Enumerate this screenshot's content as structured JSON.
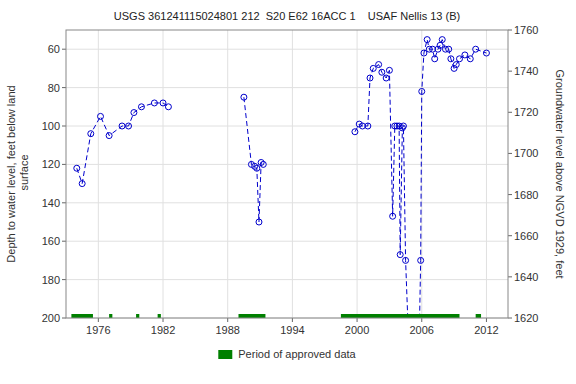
{
  "chart_data": {
    "type": "line",
    "title": "USGS 361241115024801 212  S20 E62 16ACC 1    USAF Nellis 13 (B)",
    "ylabel": "Depth to water level, feet below land\n surface",
    "y2label": "Groundwater level above NGVD 1929, feet",
    "xlim": [
      1973,
      2014
    ],
    "xticks": [
      1976,
      1982,
      1988,
      1994,
      2000,
      2006,
      2012
    ],
    "ylim": [
      200,
      50
    ],
    "yticks": [
      60,
      80,
      100,
      120,
      140,
      160,
      180,
      200
    ],
    "y2lim": [
      1620,
      1760
    ],
    "y2ticks": [
      1620,
      1640,
      1660,
      1680,
      1700,
      1720,
      1740,
      1760
    ],
    "grid": true,
    "legend": "bottom",
    "series": [
      {
        "type": "line",
        "color": "#0000cc",
        "marker": "circle",
        "line_style": "dashed",
        "x": [
          1974.0,
          1974.5,
          1975.3,
          1976.2,
          1977.0,
          1978.2,
          1978.8,
          1979.3,
          1980.0,
          1981.2,
          1982.0,
          1982.5
        ],
        "values": [
          122,
          130,
          104,
          95,
          105,
          100,
          100,
          93,
          90,
          88,
          88,
          90
        ]
      },
      {
        "type": "line",
        "color": "#0000cc",
        "marker": "circle",
        "line_style": "dashed",
        "x": [
          1989.5,
          1990.2,
          1990.5,
          1990.7,
          1990.9,
          1991.1,
          1991.3
        ],
        "values": [
          85,
          120,
          121,
          122,
          150,
          119,
          120
        ]
      },
      {
        "type": "line",
        "color": "#0000cc",
        "marker": "circle",
        "line_style": "dashed",
        "x": [
          1999.8,
          2000.2,
          2000.5,
          2001.0,
          2001.2,
          2001.5,
          2002.0,
          2002.3,
          2002.7,
          2003.0,
          2003.3,
          2003.5,
          2003.7,
          2003.9,
          2004.0,
          2004.2,
          2004.3,
          2004.5,
          2004.7,
          2004.9,
          2005.0,
          2005.1,
          2005.2,
          2005.3,
          2005.4,
          2005.5,
          2005.6,
          2005.7,
          2005.8,
          2005.9,
          2006.0,
          2006.2,
          2006.5,
          2006.7,
          2007.0,
          2007.2,
          2007.5,
          2007.7,
          2007.9,
          2008.2,
          2008.5,
          2008.7,
          2009.0,
          2009.2,
          2009.5,
          2010.0,
          2010.5,
          2011.0,
          2012.0
        ],
        "values": [
          103,
          99,
          100,
          100,
          75,
          70,
          68,
          72,
          75,
          71,
          147,
          100,
          100,
          100,
          167,
          101,
          100,
          170,
          200,
          200,
          200,
          200,
          200,
          200,
          200,
          200,
          200,
          200,
          200,
          170,
          82,
          62,
          55,
          60,
          60,
          65,
          60,
          58,
          55,
          60,
          60,
          65,
          70,
          68,
          65,
          63,
          65,
          60,
          62
        ]
      },
      {
        "type": "bar",
        "name": "Period of approved data",
        "color": "#008000",
        "x_start": [
          1973.5,
          1977.0,
          1979.5,
          1981.5,
          1989.0,
          1998.5,
          2011.0
        ],
        "x_end": [
          1975.5,
          1977.3,
          1979.8,
          1981.8,
          1991.5,
          2009.5,
          2011.5
        ],
        "values": [
          200,
          200,
          200,
          200,
          200,
          200,
          200
        ]
      }
    ]
  }
}
